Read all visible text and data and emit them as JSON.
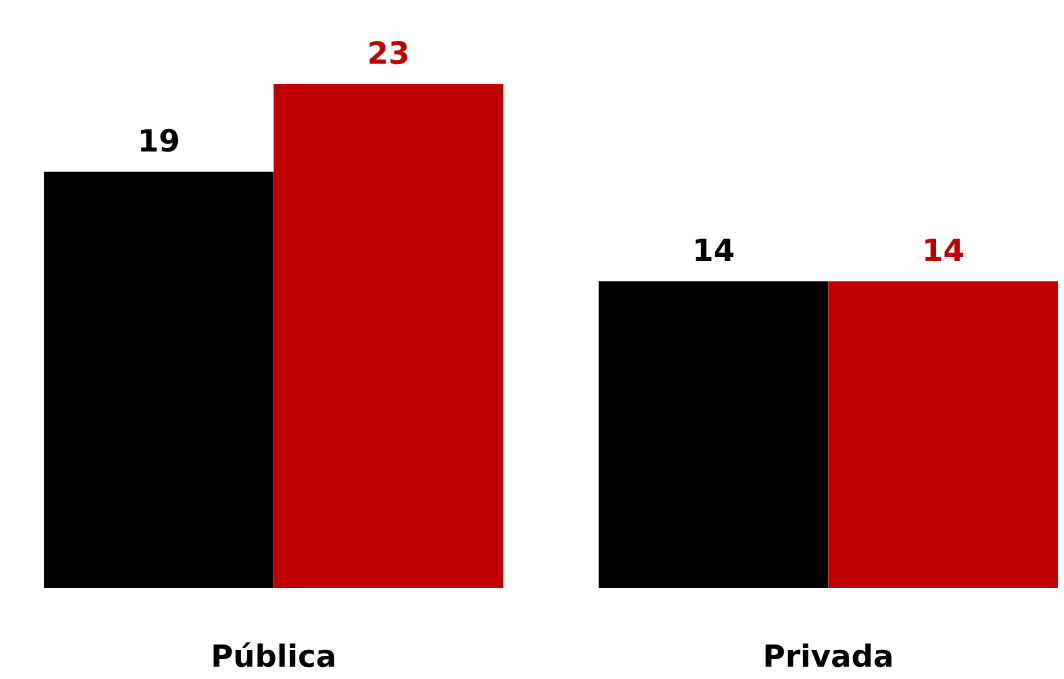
{
  "chart_data": {
    "type": "bar",
    "categories": [
      "Pública",
      "Privada"
    ],
    "series": [
      {
        "color": "#000000",
        "values": [
          19,
          14
        ]
      },
      {
        "color": "#c00000",
        "values": [
          23,
          14
        ]
      }
    ],
    "data_labels": true,
    "grid": false,
    "legend": false
  }
}
